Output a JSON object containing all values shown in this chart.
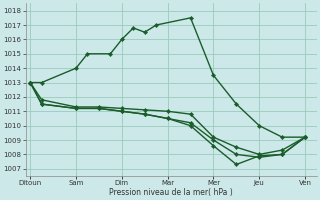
{
  "background_color": "#cce8e8",
  "grid_color": "#99ccbb",
  "line_color": "#1a5c2a",
  "x_labels": [
    "Ditoun",
    "Sam",
    "Dim",
    "Mar",
    "Mer",
    "Jeu",
    "Ven"
  ],
  "x_tick_positions": [
    0,
    2,
    4,
    6,
    8,
    10,
    12
  ],
  "xlabel": "Pression niveau de la mer( hPa )",
  "ylim": [
    1006.5,
    1018.5
  ],
  "yticks": [
    1007,
    1008,
    1009,
    1010,
    1011,
    1012,
    1013,
    1014,
    1015,
    1016,
    1017,
    1018
  ],
  "series": [
    {
      "x": [
        0,
        0.5,
        2,
        2.5,
        3.5,
        4,
        4.5,
        5,
        5.5,
        7,
        8,
        9,
        10,
        11,
        12
      ],
      "y": [
        1013.0,
        1013.0,
        1014.0,
        1015.0,
        1015.0,
        1016.0,
        1016.8,
        1016.5,
        1017.0,
        1017.5,
        1013.5,
        1011.5,
        1010.0,
        1009.2,
        1009.2
      ]
    },
    {
      "x": [
        0,
        0.5,
        2,
        3,
        4,
        5,
        6,
        7,
        8,
        9,
        10,
        11,
        12
      ],
      "y": [
        1013.0,
        1011.8,
        1011.3,
        1011.3,
        1011.2,
        1011.1,
        1011.0,
        1010.8,
        1009.2,
        1008.5,
        1008.0,
        1008.3,
        1009.2
      ]
    },
    {
      "x": [
        0,
        0.5,
        2,
        3,
        4,
        5,
        6,
        7,
        8,
        9,
        10,
        11,
        12
      ],
      "y": [
        1013.0,
        1011.5,
        1011.2,
        1011.2,
        1011.0,
        1010.8,
        1010.5,
        1010.2,
        1009.0,
        1008.0,
        1007.8,
        1008.0,
        1009.2
      ]
    },
    {
      "x": [
        0,
        0.5,
        2,
        3,
        4,
        5,
        6,
        7,
        8,
        9,
        10,
        11,
        12
      ],
      "y": [
        1013.0,
        1011.5,
        1011.2,
        1011.2,
        1011.0,
        1010.8,
        1010.5,
        1010.0,
        1008.6,
        1007.3,
        1007.9,
        1008.0,
        1009.2
      ]
    }
  ],
  "marker": "D",
  "marker_size": 2.2,
  "linewidth": 1.0,
  "title_fontsize": 6,
  "label_fontsize": 5.5,
  "tick_fontsize": 5.0
}
